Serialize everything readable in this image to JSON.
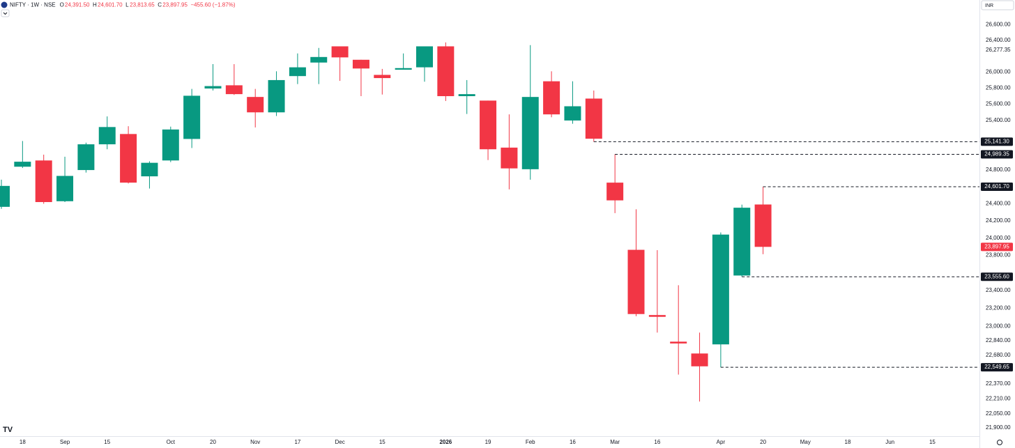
{
  "chart_data": {
    "type": "candlestick",
    "symbol": "NIFTY · 1W · NSE",
    "ohlc_legend": [
      {
        "key": "O",
        "value": "24,391.50"
      },
      {
        "key": "H",
        "value": "24,601.70"
      },
      {
        "key": "L",
        "value": "23,813.65"
      },
      {
        "key": "C",
        "value": "23,897.95"
      }
    ],
    "change": "−455.60 (−1.87%)",
    "currency": "INR",
    "up_color": "#089981",
    "down_color": "#f23645",
    "log_scale": true,
    "grid": false,
    "categories": [
      null,
      "18",
      null,
      "Sep",
      null,
      "15",
      null,
      null,
      "Oct",
      null,
      "20",
      null,
      "Nov",
      null,
      "17",
      null,
      "Dec",
      null,
      "15",
      null,
      null,
      "2026",
      null,
      "19",
      null,
      "Feb",
      null,
      "16",
      null,
      "Mar",
      null,
      "16",
      null,
      null,
      "Apr",
      null,
      "20",
      null,
      "May",
      null,
      "18",
      null,
      "Jun",
      null,
      "15",
      null
    ],
    "open": [
      24364,
      24840,
      24915,
      24430,
      24800,
      25110,
      25235,
      24725,
      24915,
      25175,
      25795,
      25835,
      25690,
      25500,
      25950,
      26120,
      26325,
      26155,
      25965,
      26030,
      26060,
      26325,
      25700,
      25645,
      25070,
      24810,
      25885,
      25400,
      25670,
      24650,
      23864,
      23125,
      22830,
      22700,
      22800,
      23570,
      24391.5,
      null,
      null,
      null,
      null,
      null,
      null,
      null,
      null,
      null
    ],
    "high": [
      24685,
      25150,
      24985,
      24960,
      25130,
      25450,
      25330,
      24905,
      25325,
      25790,
      26100,
      26100,
      25790,
      26010,
      26235,
      26305,
      26325,
      26155,
      26040,
      26235,
      26325,
      26375,
      25900,
      25645,
      25475,
      26340,
      26010,
      25885,
      25770,
      24989.35,
      24335,
      23860,
      23460,
      22930,
      24065,
      24390,
      24601.7,
      null,
      null,
      null,
      null,
      null,
      null,
      null,
      null,
      null
    ],
    "low": [
      24340,
      24825,
      24400,
      24420,
      24770,
      25050,
      24640,
      24580,
      24895,
      25065,
      25770,
      25715,
      25315,
      25455,
      25850,
      25850,
      25890,
      25700,
      25720,
      26030,
      25880,
      25640,
      25480,
      24920,
      24570,
      24685,
      25440,
      25360,
      25141.3,
      24290,
      23112,
      22930,
      22470,
      22180,
      22549.65,
      23555.6,
      23813.65,
      null,
      null,
      null,
      null,
      null,
      null,
      null,
      null,
      null
    ],
    "close": [
      24611,
      24900,
      24420,
      24730,
      25110,
      25320,
      24650,
      24887,
      25290,
      25705,
      25825,
      25725,
      25500,
      25900,
      26060,
      26190,
      26185,
      26045,
      25925,
      26050,
      26325,
      25700,
      25725,
      25050,
      24820,
      25690,
      25475,
      25575,
      25178,
      24440,
      23136,
      23105,
      22810,
      22560,
      24040,
      24353.55,
      23897.95,
      null,
      null,
      null,
      null,
      null,
      null,
      null,
      null,
      null
    ],
    "ylim": [
      21820,
      26920
    ],
    "yticks": [
      {
        "value": 26600,
        "label": "26,600.00"
      },
      {
        "value": 26400,
        "label": "26,400.00"
      },
      {
        "value": 26277.35,
        "label": "26,277.35"
      },
      {
        "value": 26000,
        "label": "26,000.00"
      },
      {
        "value": 25800,
        "label": "25,800.00"
      },
      {
        "value": 25600,
        "label": "25,600.00"
      },
      {
        "value": 25400,
        "label": "25,400.00"
      },
      {
        "value": 24800,
        "label": "24,800.00"
      },
      {
        "value": 24400,
        "label": "24,400.00"
      },
      {
        "value": 24200,
        "label": "24,200.00"
      },
      {
        "value": 24000,
        "label": "24,000.00"
      },
      {
        "value": 23800,
        "label": "23,800.00"
      },
      {
        "value": 23400,
        "label": "23,400.00"
      },
      {
        "value": 23200,
        "label": "23,200.00"
      },
      {
        "value": 23000,
        "label": "23,000.00"
      },
      {
        "value": 22840,
        "label": "22,840.00"
      },
      {
        "value": 22680,
        "label": "22,680.00"
      },
      {
        "value": 22370,
        "label": "22,370.00"
      },
      {
        "value": 22210,
        "label": "22,210.00"
      },
      {
        "value": 22050,
        "label": "22,050.00"
      },
      {
        "value": 21900,
        "label": "21,900.00"
      }
    ],
    "hlines": [
      {
        "value": 25141.3,
        "label": "25,141.30"
      },
      {
        "value": 24989.35,
        "label": "24,989.35"
      },
      {
        "value": 24601.7,
        "label": "24,601.70"
      },
      {
        "value": 23555.6,
        "label": "23,555.60"
      },
      {
        "value": 22549.65,
        "label": "22,549.65"
      }
    ],
    "last_price": {
      "value": 23897.95,
      "label": "23,897.95"
    }
  }
}
